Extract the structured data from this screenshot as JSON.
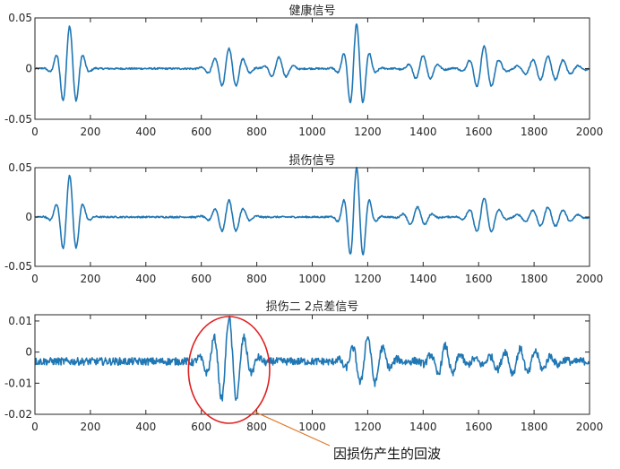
{
  "colors": {
    "line": "#1f77b4",
    "axis": "#262626",
    "highlight": "#e02020",
    "arrow": "#e07a2a"
  },
  "chart_data": [
    {
      "type": "line",
      "title": "健康信号",
      "xlim": [
        0,
        2000
      ],
      "ylim": [
        -0.05,
        0.05
      ],
      "xticks": [
        0,
        200,
        400,
        600,
        800,
        1000,
        1200,
        1400,
        1600,
        1800,
        2000
      ],
      "yticks": [
        -0.05,
        0,
        0.05
      ],
      "ytick_labels": [
        "-0.05",
        "0",
        "0.05"
      ],
      "grid": false,
      "series": [
        {
          "components": [
            {
              "center": 125,
              "amplitude": 0.042,
              "period": 50,
              "width": 45
            },
            {
              "center": 700,
              "amplitude": 0.02,
              "period": 52,
              "width": 60
            },
            {
              "center": 880,
              "amplitude": 0.011,
              "period": 55,
              "width": 45
            },
            {
              "center": 1160,
              "amplitude": 0.044,
              "period": 48,
              "width": 45
            },
            {
              "center": 1400,
              "amplitude": 0.013,
              "period": 55,
              "width": 50
            },
            {
              "center": 1620,
              "amplitude": 0.022,
              "period": 55,
              "width": 55
            },
            {
              "center": 1850,
              "amplitude": 0.012,
              "period": 55,
              "width": 90
            }
          ],
          "noise": 0.0008
        }
      ]
    },
    {
      "type": "line",
      "title": "损伤信号",
      "xlim": [
        0,
        2000
      ],
      "ylim": [
        -0.05,
        0.05
      ],
      "xticks": [
        0,
        200,
        400,
        600,
        800,
        1000,
        1200,
        1400,
        1600,
        1800,
        2000
      ],
      "yticks": [
        -0.05,
        0,
        0.05
      ],
      "ytick_labels": [
        "-0.05",
        "0",
        "0.05"
      ],
      "grid": false,
      "series": [
        {
          "components": [
            {
              "center": 125,
              "amplitude": 0.042,
              "period": 50,
              "width": 45
            },
            {
              "center": 700,
              "amplitude": 0.017,
              "period": 52,
              "width": 60
            },
            {
              "center": 1160,
              "amplitude": 0.05,
              "period": 48,
              "width": 45
            },
            {
              "center": 1380,
              "amplitude": 0.01,
              "period": 55,
              "width": 50
            },
            {
              "center": 1620,
              "amplitude": 0.019,
              "period": 55,
              "width": 55
            },
            {
              "center": 1850,
              "amplitude": 0.01,
              "period": 55,
              "width": 90
            }
          ],
          "noise": 0.0008
        }
      ]
    },
    {
      "type": "line",
      "title": "损伤二 2点差信号",
      "xlim": [
        0,
        2000
      ],
      "ylim": [
        -0.02,
        0.012
      ],
      "xticks": [
        0,
        200,
        400,
        600,
        800,
        1000,
        1200,
        1400,
        1600,
        1800,
        2000
      ],
      "yticks": [
        -0.02,
        -0.01,
        0,
        0.01
      ],
      "ytick_labels": [
        "-0.02",
        "-0.01",
        "0",
        "0.01"
      ],
      "grid": false,
      "baseline": -0.003,
      "series": [
        {
          "components": [
            {
              "center": 700,
              "amplitude": 0.014,
              "period": 55,
              "width": 70
            },
            {
              "center": 1200,
              "amplitude": 0.008,
              "period": 55,
              "width": 70
            },
            {
              "center": 1480,
              "amplitude": 0.005,
              "period": 55,
              "width": 60
            },
            {
              "center": 1750,
              "amplitude": 0.004,
              "period": 55,
              "width": 120
            }
          ],
          "noise": 0.0012
        }
      ],
      "annotation": {
        "text": "因损伤产生的回波",
        "highlight_x_range": [
          560,
          840
        ]
      }
    }
  ]
}
